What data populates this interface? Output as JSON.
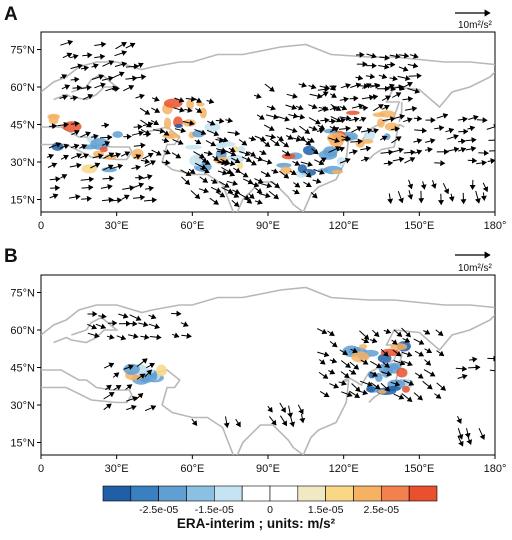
{
  "chart_data": [
    {
      "type": "vector_field",
      "panel": "A",
      "reference_vector_label": "10m²/s²",
      "x_ticks": [
        "0",
        "30°E",
        "60°E",
        "90°E",
        "120°E",
        "150°E",
        "180°"
      ],
      "y_ticks": [
        "75°N",
        "60°N",
        "45°N",
        "30°N",
        "15°N"
      ],
      "xlim": [
        0,
        180
      ],
      "ylim": [
        10,
        82
      ],
      "arrow_regions": [
        {
          "lon": [
            3,
            42
          ],
          "lat": [
            15,
            48
          ],
          "dir": [
            1.0,
            0.25
          ]
        },
        {
          "lon": [
            8,
            38
          ],
          "lat": [
            55,
            78
          ],
          "dir": [
            1.0,
            0.3
          ]
        },
        {
          "lon": [
            40,
            75
          ],
          "lat": [
            30,
            58
          ],
          "dir": [
            0.9,
            -0.35
          ]
        },
        {
          "lon": [
            55,
            85
          ],
          "lat": [
            15,
            35
          ],
          "dir": [
            0.8,
            -0.45
          ]
        },
        {
          "lon": [
            70,
            112
          ],
          "lat": [
            18,
            40
          ],
          "dir": [
            0.85,
            -0.45
          ]
        },
        {
          "lon": [
            85,
            120
          ],
          "lat": [
            40,
            62
          ],
          "dir": [
            0.9,
            -0.4
          ]
        },
        {
          "lon": [
            110,
            145
          ],
          "lat": [
            30,
            60
          ],
          "dir": [
            0.9,
            0.3
          ]
        },
        {
          "lon": [
            125,
            150
          ],
          "lat": [
            60,
            75
          ],
          "dir": [
            1.0,
            -0.2
          ]
        },
        {
          "lon": [
            148,
            178
          ],
          "lat": [
            30,
            50
          ],
          "dir": [
            1.0,
            0.15
          ]
        },
        {
          "lon": [
            138,
            178
          ],
          "lat": [
            18,
            26
          ],
          "dir": [
            0.2,
            -1.0
          ]
        }
      ],
      "shading_regions": [
        {
          "lon": [
            2,
            40
          ],
          "lat": [
            25,
            50
          ],
          "value": 2.5e-05
        },
        {
          "lon": [
            50,
            70
          ],
          "lat": [
            40,
            55
          ],
          "value": 2.5e-05
        },
        {
          "lon": [
            95,
            120
          ],
          "lat": [
            25,
            35
          ],
          "value": -2.5e-05
        },
        {
          "lon": [
            115,
            140
          ],
          "lat": [
            35,
            50
          ],
          "value": 2.5e-05
        },
        {
          "lon": [
            60,
            85
          ],
          "lat": [
            28,
            38
          ],
          "value": -1.5e-05
        }
      ]
    },
    {
      "type": "vector_field",
      "panel": "B",
      "reference_vector_label": "10m²/s²",
      "x_ticks": [
        "0",
        "30°E",
        "60°E",
        "90°E",
        "120°E",
        "150°E",
        "180°"
      ],
      "y_ticks": [
        "75°N",
        "60°N",
        "45°N",
        "30°N",
        "15°N"
      ],
      "xlim": [
        0,
        180
      ],
      "ylim": [
        10,
        82
      ],
      "arrow_regions": [
        {
          "lon": [
            18,
            58
          ],
          "lat": [
            58,
            70
          ],
          "dir": [
            1.0,
            -0.2
          ]
        },
        {
          "lon": [
            25,
            45
          ],
          "lat": [
            28,
            45
          ],
          "dir": [
            0.8,
            0.5
          ]
        },
        {
          "lon": [
            60,
            80
          ],
          "lat": [
            25,
            28
          ],
          "dir": [
            0.4,
            -0.9
          ]
        },
        {
          "lon": [
            90,
            105
          ],
          "lat": [
            26,
            32
          ],
          "dir": [
            0.4,
            -0.9
          ]
        },
        {
          "lon": [
            110,
            160
          ],
          "lat": [
            35,
            62
          ],
          "dir": [
            0.85,
            -0.5
          ]
        },
        {
          "lon": [
            165,
            178
          ],
          "lat": [
            40,
            50
          ],
          "dir": [
            1.0,
            0.1
          ]
        },
        {
          "lon": [
            165,
            175
          ],
          "lat": [
            17,
            28
          ],
          "dir": [
            0.3,
            -0.95
          ]
        }
      ],
      "shading_regions": [
        {
          "lon": [
            120,
            145
          ],
          "lat": [
            40,
            55
          ],
          "value": 2.5e-05
        },
        {
          "lon": [
            130,
            150
          ],
          "lat": [
            35,
            45
          ],
          "value": -2.5e-05
        },
        {
          "lon": [
            35,
            50
          ],
          "lat": [
            40,
            45
          ],
          "value": -1.5e-05
        }
      ]
    }
  ],
  "colorbar": {
    "tick_labels": [
      "-2.5e-05",
      "-1.5e-05",
      "0",
      "1.5e-05",
      "2.5e-05"
    ],
    "colors": [
      "#1f5fa8",
      "#3a80c0",
      "#5f9fd2",
      "#8cc0e3",
      "#c4e3f3",
      "#ffffff",
      "#ffffff",
      "#f1e8c4",
      "#f9d785",
      "#f6b163",
      "#f3804f",
      "#e9512e"
    ]
  },
  "caption": "ERA-interim ; units: m/s²",
  "panel_a": {
    "letter": "A",
    "ref": "10m²/s²"
  },
  "panel_b": {
    "letter": "B",
    "ref": "10m²/s²"
  }
}
